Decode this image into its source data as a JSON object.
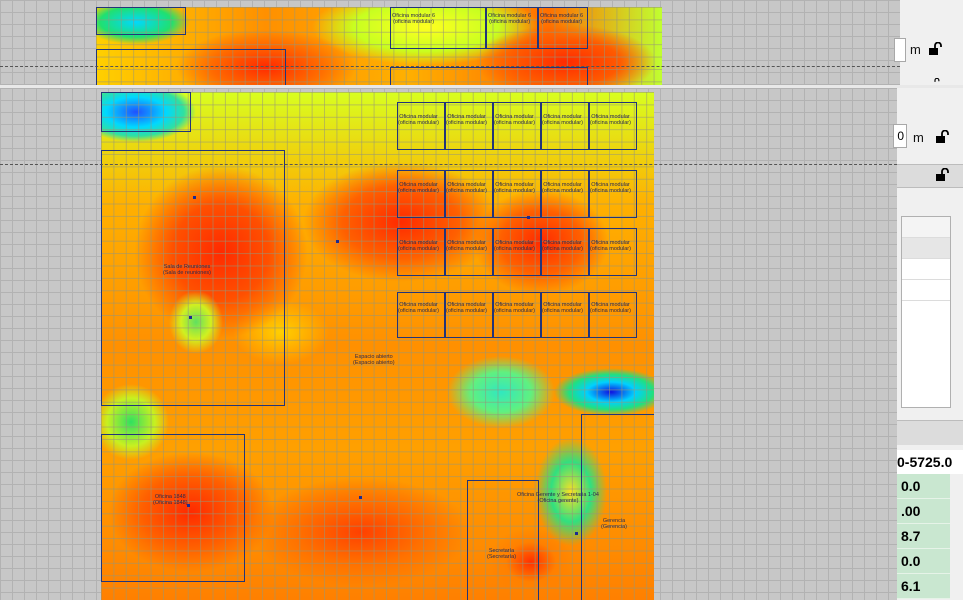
{
  "top_view": {
    "rooms": [
      {
        "label": "Oficina modular 6\n(oficina modular)"
      },
      {
        "label": "Oficina modular 6\n(oficina modular)"
      },
      {
        "label": "Oficina modular 6\n(oficina modular)"
      }
    ]
  },
  "main_view": {
    "rooms": [
      {
        "label": "Oficina modular\n(oficina modular)"
      },
      {
        "label": "Oficina modular\n(oficina modular)"
      },
      {
        "label": "Oficina modular\n(oficina modular)"
      },
      {
        "label": "Oficina modular\n(oficina modular)"
      },
      {
        "label": "Oficina modular\n(oficina modular)"
      },
      {
        "label": "Oficina modular\n(oficina modular)"
      },
      {
        "label": "Oficina modular\n(oficina modular)"
      },
      {
        "label": "Oficina modular\n(oficina modular)"
      },
      {
        "label": "Oficina modular\n(oficina modular)"
      },
      {
        "label": "Oficina modular\n(oficina modular)"
      },
      {
        "label": "Oficina modular\n(oficina modular)"
      },
      {
        "label": "Oficina modular\n(oficina modular)"
      },
      {
        "label": "Oficina modular\n(oficina modular)"
      },
      {
        "label": "Oficina modular\n(oficina modular)"
      },
      {
        "label": "Oficina modular\n(oficina modular)"
      },
      {
        "label": "Oficina modular\n(oficina modular)"
      },
      {
        "label": "Oficina modular\n(oficina modular)"
      },
      {
        "label": "Oficina modular\n(oficina modular)"
      },
      {
        "label": "Oficina modular\n(oficina modular)"
      },
      {
        "label": "Oficina modular\n(oficina modular)"
      },
      {
        "label": "Sala de Reuniones\n(Sala de reuniones)"
      },
      {
        "label": "Espacio abierto\n(Espacio abierto)"
      },
      {
        "label": "Oficina 1848\n(Oficina 1848)"
      },
      {
        "label": "Oficina Gerente y Secretaria 1-04\n(Oficina gerente)"
      },
      {
        "label": "Secretaría\n(Secretaría)"
      },
      {
        "label": "Gerencia\n(Gerencia)"
      }
    ]
  },
  "right_panel": {
    "unit_top": "m",
    "unit_main": "m",
    "field_top_value": "",
    "field_main_value": "0",
    "value_header": "0-5725.0",
    "values": [
      "0.0",
      ".00",
      "8.7",
      "0.0",
      "6.1"
    ]
  },
  "colors": {
    "accent_green": "#c9e7d0",
    "room_border": "#22357a",
    "heat_high": "#ff2a00",
    "heat_low": "#1f2de0"
  }
}
